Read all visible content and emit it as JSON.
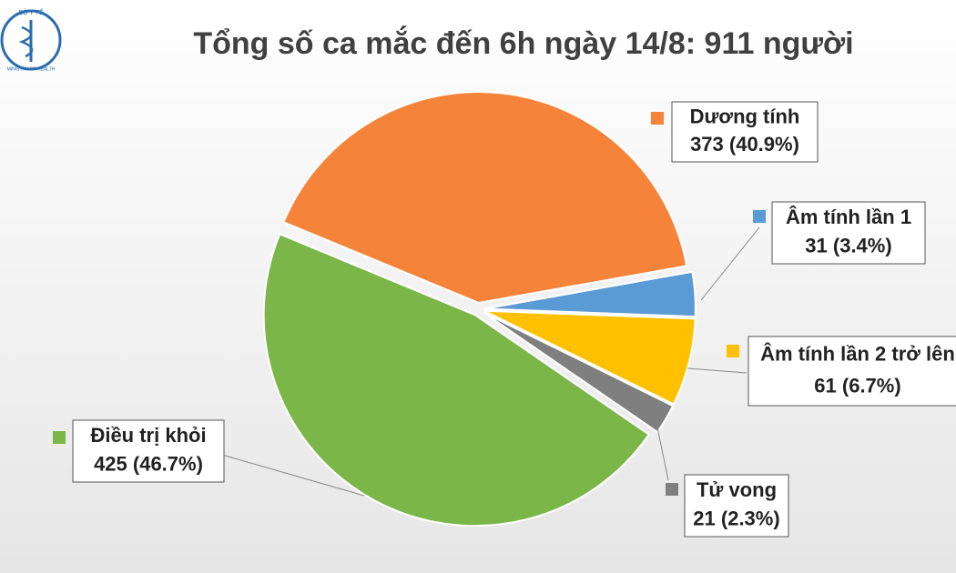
{
  "logo": {
    "top": "BỘ Y TẾ",
    "bottom": "MINISTRY OF HEALTH"
  },
  "chart_data": {
    "type": "pie",
    "title": "Tổng số ca mắc đến 6h ngày 14/8: 911 người",
    "categories": [
      "Dương tính",
      "Âm tính lần 1",
      "Âm tính lần 2 trở lên",
      "Tử vong",
      "Điều trị khỏi"
    ],
    "values": [
      373,
      31,
      61,
      21,
      425
    ],
    "value_labels": [
      "373 (40.9%)",
      "31 (3.4%)",
      "61 (6.7%)",
      "21 (2.3%)",
      "425 (46.7%)"
    ],
    "colors": [
      "#f5843a",
      "#5b9bd5",
      "#ffc000",
      "#7f7f7f",
      "#7ab648"
    ]
  }
}
